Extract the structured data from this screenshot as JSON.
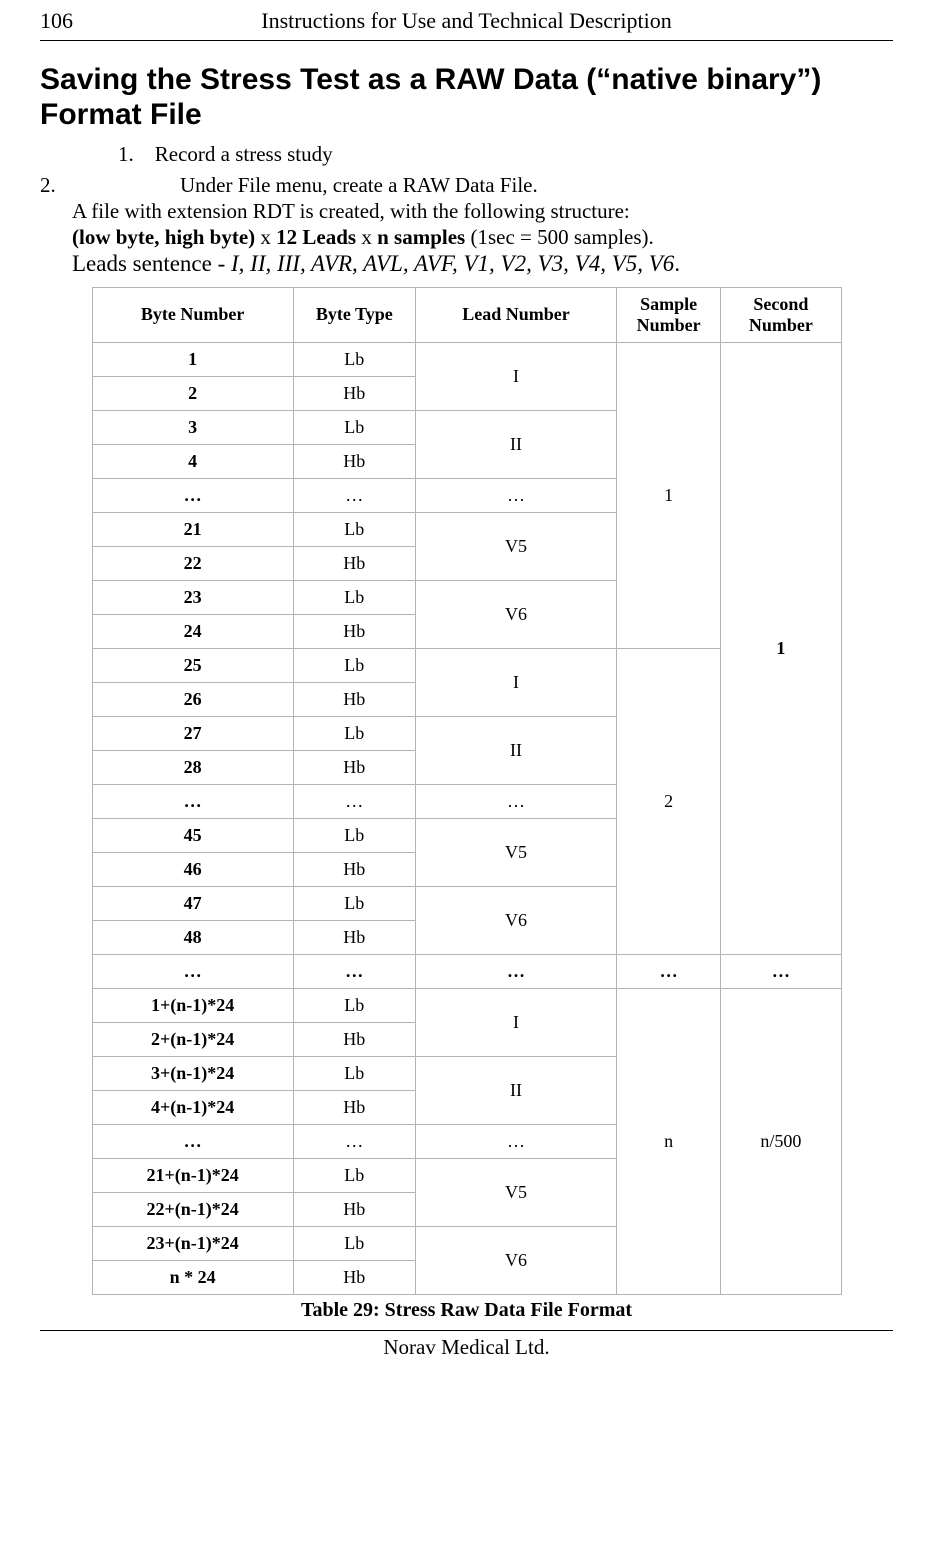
{
  "header": {
    "page_number": "106",
    "doc_title": "Instructions for Use and Technical Description"
  },
  "heading": "Saving the Stress Test as a RAW Data (“native binary”) Format File",
  "list": {
    "item1_num": "1.",
    "item1_text": "Record a stress study",
    "item2_num": "2.",
    "item2_text": "Under File menu, create a RAW Data File."
  },
  "body": {
    "line1": "A file with extension RDT is created, with the following structure:",
    "line2_pre": "(low byte, high byte)",
    "line2_mid1": " x ",
    "line2_leads": "12 Leads",
    "line2_mid2": " x ",
    "line2_n": "n samples",
    "line2_post": " (1sec = 500 samples).",
    "line3_pre": "Leads sentence - ",
    "line3_italic": "I, II, III, AVR, AVL, AVF, V1, V2, V3, V4, V5, V6",
    "line3_end": "."
  },
  "table": {
    "headers": {
      "byte_number": "Byte Number",
      "byte_type": "Byte Type",
      "lead_number": "Lead Number",
      "sample_number": "Sample Number",
      "second_number": "Second Number"
    },
    "rows": [
      {
        "bn": "1",
        "bt": "Lb"
      },
      {
        "bn": "2",
        "bt": "Hb"
      },
      {
        "bn": "3",
        "bt": "Lb"
      },
      {
        "bn": "4",
        "bt": "Hb"
      },
      {
        "bn": "…",
        "bt": "…"
      },
      {
        "bn": "21",
        "bt": "Lb"
      },
      {
        "bn": "22",
        "bt": "Hb"
      },
      {
        "bn": "23",
        "bt": "Lb"
      },
      {
        "bn": "24",
        "bt": "Hb"
      },
      {
        "bn": "25",
        "bt": "Lb"
      },
      {
        "bn": "26",
        "bt": "Hb"
      },
      {
        "bn": "27",
        "bt": "Lb"
      },
      {
        "bn": "28",
        "bt": "Hb"
      },
      {
        "bn": "…",
        "bt": "…"
      },
      {
        "bn": "45",
        "bt": "Lb"
      },
      {
        "bn": "46",
        "bt": "Hb"
      },
      {
        "bn": "47",
        "bt": "Lb"
      },
      {
        "bn": "48",
        "bt": "Hb"
      },
      {
        "bn": "…",
        "bt": "…"
      },
      {
        "bn": "1+(n-1)*24",
        "bt": "Lb"
      },
      {
        "bn": "2+(n-1)*24",
        "bt": "Hb"
      },
      {
        "bn": "3+(n-1)*24",
        "bt": "Lb"
      },
      {
        "bn": "4+(n-1)*24",
        "bt": "Hb"
      },
      {
        "bn": "…",
        "bt": "…"
      },
      {
        "bn": "21+(n-1)*24",
        "bt": "Lb"
      },
      {
        "bn": "22+(n-1)*24",
        "bt": "Hb"
      },
      {
        "bn": "23+(n-1)*24",
        "bt": "Lb"
      },
      {
        "bn": "n * 24",
        "bt": "Hb"
      }
    ],
    "leads": {
      "s1": [
        "I",
        "II",
        "…",
        "V5",
        "V6"
      ],
      "s2": [
        "I",
        "II",
        "…",
        "V5",
        "V6"
      ],
      "sdots": "…",
      "sn": [
        "I",
        "II",
        "…",
        "V5",
        "V6"
      ]
    },
    "samples": {
      "s1": "1",
      "s2": "2",
      "dots": "…",
      "sn": "n"
    },
    "seconds": {
      "s1": "1",
      "dots": "…",
      "sn": "n/500"
    }
  },
  "caption": "Table 29: Stress Raw Data File Format",
  "footer": "Norav Medical Ltd."
}
